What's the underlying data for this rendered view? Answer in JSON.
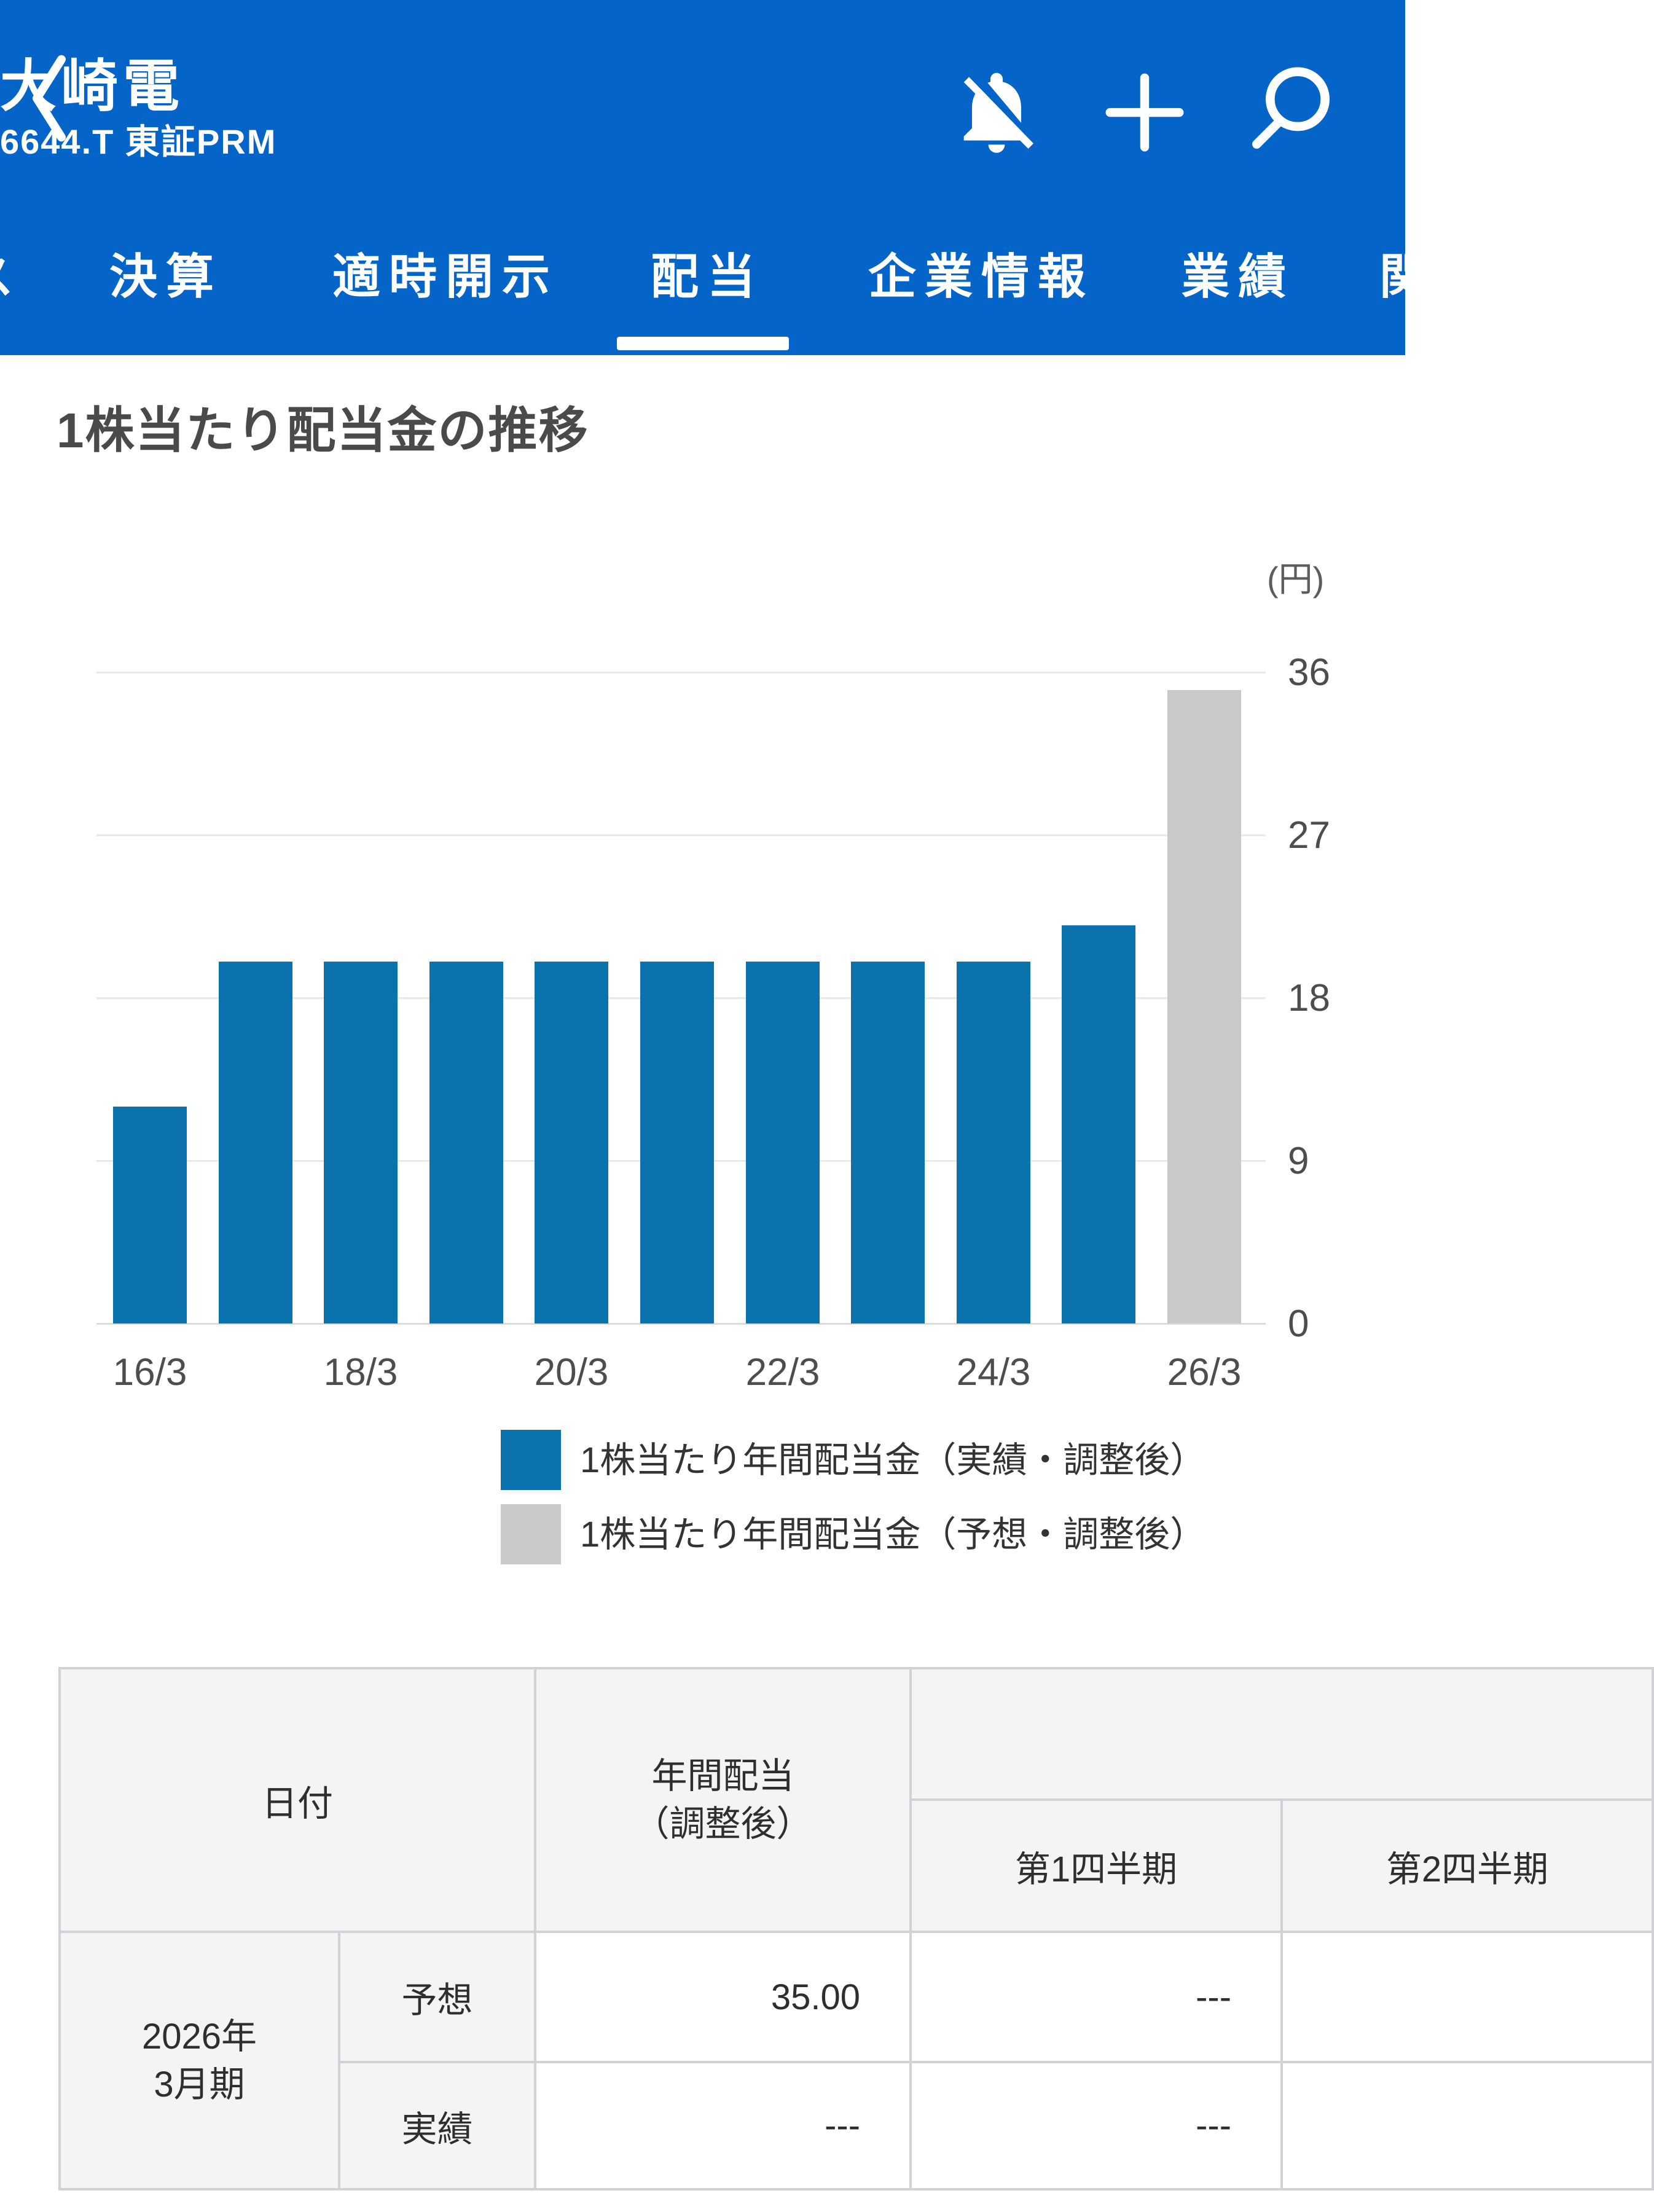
{
  "header": {
    "title": "大崎電",
    "subtitle": "6644.T 東証PRM",
    "nav": {
      "left_partial_label": "ス",
      "tabs": [
        {
          "label": "決算",
          "active": false
        },
        {
          "label": "適時開示",
          "active": false
        },
        {
          "label": "配当",
          "active": true
        },
        {
          "label": "企業情報",
          "active": false
        },
        {
          "label": "業績",
          "active": false
        }
      ],
      "right_partial_label": "関"
    }
  },
  "section_title": "1株当たり配当金の推移",
  "chart_data": {
    "type": "bar",
    "title": "1株当たり配当金の推移",
    "unit_label": "(円)",
    "ylabel": "円",
    "ylim": [
      0,
      36
    ],
    "yticks": [
      0,
      9,
      18,
      27,
      36
    ],
    "grid": true,
    "bars": [
      {
        "x": "16/3",
        "value": 12,
        "kind": "actual"
      },
      {
        "x": "17/3",
        "value": 20,
        "kind": "actual"
      },
      {
        "x": "18/3",
        "value": 20,
        "kind": "actual"
      },
      {
        "x": "19/3",
        "value": 20,
        "kind": "actual"
      },
      {
        "x": "20/3",
        "value": 20,
        "kind": "actual"
      },
      {
        "x": "21/3",
        "value": 20,
        "kind": "actual"
      },
      {
        "x": "22/3",
        "value": 20,
        "kind": "actual"
      },
      {
        "x": "23/3",
        "value": 20,
        "kind": "actual"
      },
      {
        "x": "24/3",
        "value": 20,
        "kind": "actual"
      },
      {
        "x": "25/3",
        "value": 22,
        "kind": "actual"
      },
      {
        "x": "26/3",
        "value": 35,
        "kind": "forecast"
      }
    ],
    "x_tick_labels": [
      "16/3",
      "18/3",
      "20/3",
      "22/3",
      "24/3",
      "26/3"
    ],
    "colors": {
      "actual": "#0a73ad",
      "forecast": "#c9c9c9"
    },
    "legend_position": "bottom",
    "legend": [
      {
        "label": "1株当たり年間配当金（実績・調整後）",
        "kind": "actual"
      },
      {
        "label": "1株当たり年間配当金（予想・調整後）",
        "kind": "forecast"
      }
    ]
  },
  "table": {
    "headers": {
      "date": "日付",
      "annual": "年間配当\n（調整後）",
      "group": "",
      "q1": "第1四半期",
      "q2": "第2四半期"
    },
    "rows": [
      {
        "period": "2026年\n3月期",
        "type": "予想",
        "annual": "35.00",
        "q1": "---",
        "q2": ""
      },
      {
        "type": "実績",
        "annual": "---",
        "q1": "---",
        "q2": ""
      }
    ]
  },
  "colors": {
    "appbar_blue": "#0464c8",
    "bar_actual_blue": "#0a73ad",
    "bar_forecast_gray": "#c9c9c9",
    "table_header_bg": "#f4f4f6",
    "table_border": "#d2d2d6"
  }
}
